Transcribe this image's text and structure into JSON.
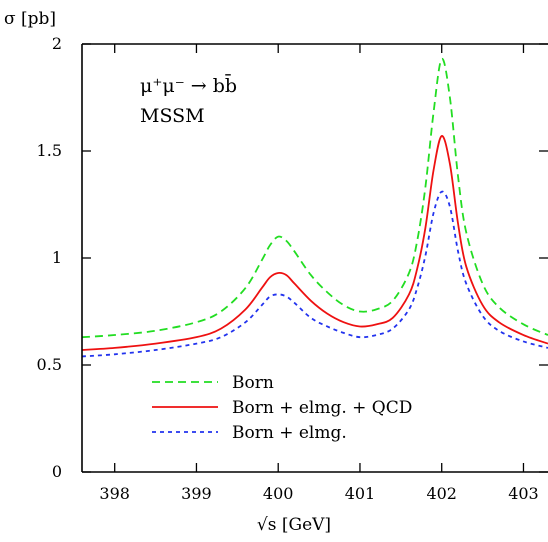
{
  "chart_data": {
    "type": "line",
    "title": "",
    "xlabel": "√s [GeV]",
    "ylabel": "σ [pb]",
    "xlim": [
      397.6,
      403.3
    ],
    "ylim": [
      0,
      2
    ],
    "x_ticks": [
      398,
      399,
      400,
      401,
      402,
      403
    ],
    "y_ticks": [
      0,
      0.5,
      1,
      1.5,
      2
    ],
    "x_tick_labels": [
      "398",
      "399",
      "400",
      "401",
      "402",
      "403"
    ],
    "y_tick_labels": [
      "0",
      "0.5",
      "1",
      "1.5",
      "2"
    ],
    "grid": false,
    "annotations": [
      "μ⁺μ⁻ → bb̄",
      "MSSM"
    ],
    "legend": {
      "placement": "bottom-left"
    },
    "series": [
      {
        "name": "Born",
        "color": "#22dd22",
        "dash": "dashed",
        "x": [
          397.6,
          398.0,
          398.5,
          399.0,
          399.3,
          399.6,
          399.8,
          399.9,
          400.0,
          400.1,
          400.2,
          400.4,
          400.6,
          400.8,
          401.0,
          401.2,
          401.4,
          401.6,
          401.7,
          401.8,
          401.9,
          402.0,
          402.1,
          402.2,
          402.3,
          402.5,
          402.7,
          403.0,
          403.3
        ],
        "y": [
          0.63,
          0.64,
          0.66,
          0.7,
          0.75,
          0.86,
          0.99,
          1.06,
          1.1,
          1.08,
          1.03,
          0.92,
          0.84,
          0.78,
          0.75,
          0.76,
          0.8,
          0.93,
          1.08,
          1.33,
          1.68,
          1.93,
          1.75,
          1.38,
          1.12,
          0.88,
          0.77,
          0.69,
          0.64
        ]
      },
      {
        "name": "Born + elmg. + QCD",
        "color": "#ee1111",
        "dash": "solid",
        "x": [
          397.6,
          398.0,
          398.5,
          399.0,
          399.3,
          399.6,
          399.8,
          399.9,
          400.0,
          400.1,
          400.2,
          400.4,
          400.6,
          400.8,
          401.0,
          401.2,
          401.4,
          401.6,
          401.7,
          401.8,
          401.9,
          402.0,
          402.1,
          402.2,
          402.3,
          402.5,
          402.7,
          403.0,
          403.3
        ],
        "y": [
          0.57,
          0.58,
          0.6,
          0.63,
          0.67,
          0.76,
          0.86,
          0.91,
          0.93,
          0.92,
          0.88,
          0.8,
          0.74,
          0.7,
          0.68,
          0.69,
          0.72,
          0.83,
          0.95,
          1.14,
          1.41,
          1.57,
          1.44,
          1.16,
          0.96,
          0.78,
          0.7,
          0.64,
          0.6
        ]
      },
      {
        "name": "Born + elmg.",
        "color": "#2233ee",
        "dash": "dotted",
        "x": [
          397.6,
          398.0,
          398.5,
          399.0,
          399.3,
          399.6,
          399.8,
          399.9,
          400.0,
          400.1,
          400.2,
          400.4,
          400.6,
          400.8,
          401.0,
          401.2,
          401.4,
          401.6,
          401.7,
          401.8,
          401.9,
          402.0,
          402.1,
          402.2,
          402.3,
          402.5,
          402.7,
          403.0,
          403.3
        ],
        "y": [
          0.54,
          0.55,
          0.57,
          0.6,
          0.63,
          0.7,
          0.78,
          0.82,
          0.83,
          0.82,
          0.79,
          0.72,
          0.68,
          0.65,
          0.63,
          0.64,
          0.67,
          0.76,
          0.86,
          1.01,
          1.21,
          1.31,
          1.24,
          1.03,
          0.88,
          0.73,
          0.66,
          0.61,
          0.58
        ]
      }
    ]
  }
}
